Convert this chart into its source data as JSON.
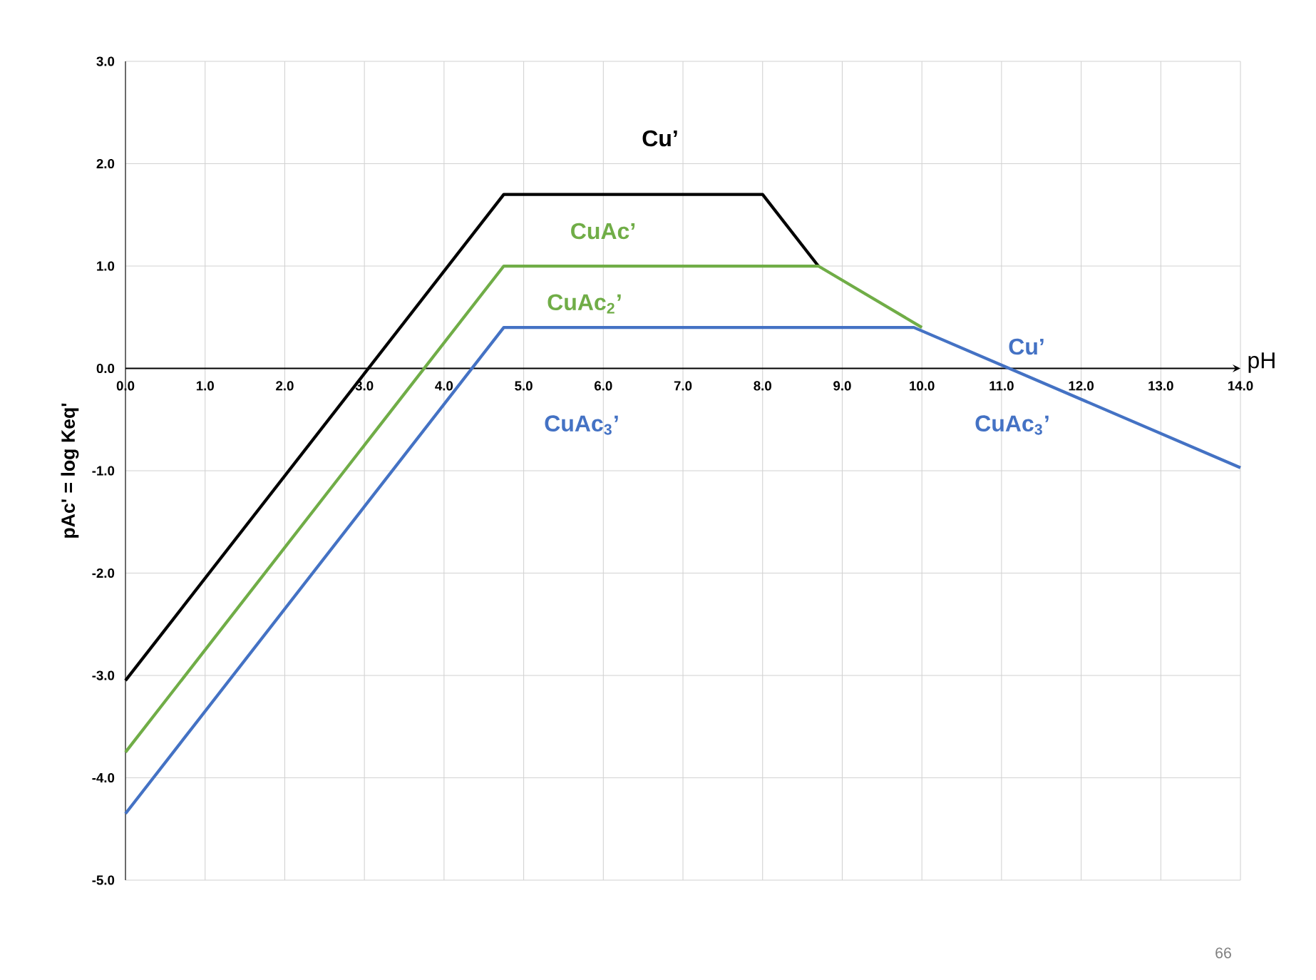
{
  "chart_data": {
    "type": "line",
    "xlabel": "pH",
    "ylabel": "pAc' = log Keq'",
    "series": [
      {
        "color": "#000000",
        "x": [
          0,
          4.75,
          8.0,
          8.7
        ],
        "values": [
          -3.05,
          1.7,
          1.7,
          1.0
        ]
      },
      {
        "color": "#70ad47",
        "x": [
          0,
          4.75,
          8.7,
          10.0
        ],
        "values": [
          -3.75,
          1.0,
          1.0,
          0.4
        ]
      },
      {
        "color": "#4472c4",
        "x": [
          0,
          4.75,
          9.9,
          14.0
        ],
        "values": [
          -4.35,
          0.4,
          0.4,
          -0.97
        ]
      }
    ],
    "xlim": [
      0,
      14
    ],
    "ylim": [
      -5,
      3
    ],
    "xticks": [
      {
        "value": 0,
        "label": "0.0"
      },
      {
        "value": 1,
        "label": "1.0"
      },
      {
        "value": 2,
        "label": "2.0"
      },
      {
        "value": 3,
        "label": "3.0"
      },
      {
        "value": 4,
        "label": "4.0"
      },
      {
        "value": 5,
        "label": "5.0"
      },
      {
        "value": 6,
        "label": "6.0"
      },
      {
        "value": 7,
        "label": "7.0"
      },
      {
        "value": 8,
        "label": "8.0"
      },
      {
        "value": 9,
        "label": "9.0"
      },
      {
        "value": 10,
        "label": "10.0"
      },
      {
        "value": 11,
        "label": "11.0"
      },
      {
        "value": 12,
        "label": "12.0"
      },
      {
        "value": 13,
        "label": "13.0"
      },
      {
        "value": 14,
        "label": "14.0"
      }
    ],
    "yticks": [
      {
        "value": -5,
        "label": "-5.0"
      },
      {
        "value": -4,
        "label": "-4.0"
      },
      {
        "value": -3,
        "label": "-3.0"
      },
      {
        "value": -2,
        "label": "-2.0"
      },
      {
        "value": -1,
        "label": "-1.0"
      },
      {
        "value": 0,
        "label": "0.0"
      },
      {
        "value": 1,
        "label": "1.0"
      },
      {
        "value": 2,
        "label": "2.0"
      },
      {
        "value": 3,
        "label": "3.0"
      }
    ],
    "grid": true,
    "marker": "none",
    "line_style": "solid",
    "annotations": [
      "Cu’",
      "CuAc’",
      "CuAc$_{2}$’",
      "CuAc$_{3}$’",
      "Cu’",
      "CuAc$_{3}$’",
      "66"
    ]
  }
}
